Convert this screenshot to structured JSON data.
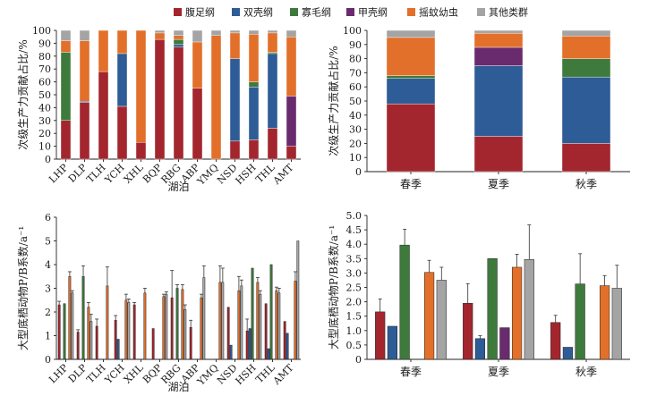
{
  "legend": [
    {
      "name": "腹足纲",
      "color": "#a3262e"
    },
    {
      "name": "双壳纲",
      "color": "#2e5c96"
    },
    {
      "name": "寡毛纲",
      "color": "#3f7a3d"
    },
    {
      "name": "甲壳纲",
      "color": "#6a2b6e"
    },
    {
      "name": "摇蚊幼虫",
      "color": "#e2702a"
    },
    {
      "name": "其他类群",
      "color": "#a4a4a4"
    }
  ],
  "chart_data": [
    {
      "type": "bar",
      "stacked": true,
      "panel": "top-left",
      "xlabel": "湖泊",
      "ylabel": "次级生产力贡献占比/%",
      "ylim": [
        0,
        100
      ],
      "yticks": [
        0,
        10,
        20,
        30,
        40,
        50,
        60,
        70,
        80,
        90,
        100
      ],
      "categories": [
        "LHP",
        "DLP",
        "TLH",
        "YCH",
        "XHL",
        "BQP",
        "RBG",
        "ABP",
        "YMQ",
        "NSD",
        "HSH",
        "THL",
        "AMT"
      ],
      "series": [
        {
          "name": "腹足纲",
          "values": [
            30,
            44,
            68,
            41,
            13,
            93,
            87,
            55,
            0,
            14,
            15,
            24,
            10
          ]
        },
        {
          "name": "双壳纲",
          "values": [
            0,
            1,
            0,
            41,
            0,
            0,
            2,
            0,
            0,
            64,
            41,
            58,
            0
          ]
        },
        {
          "name": "寡毛纲",
          "values": [
            53,
            0,
            0,
            0,
            0,
            0,
            4,
            0,
            0,
            0,
            4,
            1,
            0
          ]
        },
        {
          "name": "甲壳纲",
          "values": [
            0,
            0,
            0,
            0,
            0,
            0,
            0,
            0,
            0,
            0,
            0,
            0,
            39
          ]
        },
        {
          "name": "摇蚊幼虫",
          "values": [
            9,
            47,
            32,
            18,
            87,
            5,
            3,
            36,
            96,
            20,
            37,
            15,
            46
          ]
        },
        {
          "name": "其他类群",
          "values": [
            8,
            8,
            0,
            0,
            0,
            2,
            4,
            9,
            4,
            2,
            3,
            2,
            5
          ]
        }
      ]
    },
    {
      "type": "bar",
      "stacked": true,
      "panel": "top-right",
      "xlabel": "",
      "ylabel": "次级生产力贡献占比/%",
      "ylim": [
        0,
        100
      ],
      "yticks": [
        0,
        10,
        20,
        30,
        40,
        50,
        60,
        70,
        80,
        90,
        100
      ],
      "categories": [
        "春季",
        "夏季",
        "秋季"
      ],
      "series": [
        {
          "name": "腹足纲",
          "values": [
            48,
            25,
            20
          ]
        },
        {
          "name": "双壳纲",
          "values": [
            18,
            50,
            47
          ]
        },
        {
          "name": "寡毛纲",
          "values": [
            2,
            0,
            13
          ]
        },
        {
          "name": "甲壳纲",
          "values": [
            0,
            13,
            0
          ]
        },
        {
          "name": "摇蚊幼虫",
          "values": [
            27,
            10,
            16
          ]
        },
        {
          "name": "其他类群",
          "values": [
            5,
            2,
            4
          ]
        }
      ]
    },
    {
      "type": "bar",
      "grouped": true,
      "panel": "bottom-left",
      "xlabel": "湖泊",
      "ylabel": "大型底栖动物P/B系数/a⁻¹",
      "ylim": [
        0,
        6
      ],
      "yticks": [
        0,
        1,
        2,
        3,
        4,
        5,
        6
      ],
      "categories": [
        "LHP",
        "DLP",
        "TLH",
        "YCH",
        "XHL",
        "BQP",
        "RBG",
        "ABP",
        "YMQ",
        "NSD",
        "HSH",
        "THL",
        "AMT"
      ],
      "series": [
        {
          "name": "腹足纲",
          "values": [
            2.3,
            1.15,
            1.4,
            1.65,
            2.3,
            1.3,
            2.6,
            1.35,
            0,
            2.2,
            1.2,
            2.35,
            1.6
          ],
          "errors": [
            0.15,
            0.1,
            0.3,
            0.2,
            0.1,
            0,
            1.15,
            0.3,
            0,
            0,
            0.5,
            0,
            0
          ]
        },
        {
          "name": "双壳纲",
          "values": [
            0,
            0,
            0,
            0.85,
            0,
            0,
            0,
            0,
            0,
            0.6,
            1.3,
            0.45,
            1.1
          ]
        },
        {
          "name": "寡毛纲",
          "values": [
            2.35,
            3.5,
            0,
            0,
            0,
            0,
            3.0,
            0,
            0,
            0,
            3.85,
            4.0,
            0
          ],
          "errors": [
            0,
            0.45,
            0,
            0,
            0,
            0,
            0.15,
            0,
            0,
            0,
            0,
            0,
            0
          ]
        },
        {
          "name": "甲壳纲",
          "values": [
            0,
            0,
            0,
            0,
            0,
            0,
            0,
            0,
            0,
            0,
            0,
            0,
            0
          ]
        },
        {
          "name": "摇蚊幼虫",
          "values": [
            3.5,
            2.2,
            3.1,
            2.5,
            2.8,
            2.65,
            2.95,
            2.6,
            3.25,
            2.9,
            3.25,
            2.9,
            3.3
          ],
          "errors": [
            0.2,
            0.2,
            0.8,
            0.25,
            0.2,
            0.1,
            0.2,
            0.15,
            0.7,
            0.6,
            0.2,
            0.15,
            0.4
          ]
        },
        {
          "name": "其他类群",
          "values": [
            2.8,
            1.6,
            0,
            2.4,
            0,
            2.75,
            2.1,
            3.45,
            3.25,
            3.1,
            2.75,
            2.8,
            5.0
          ],
          "errors": [
            0.1,
            0.3,
            0,
            0.15,
            0,
            0.1,
            0.2,
            0.5,
            0.6,
            0.25,
            0.15,
            0.2,
            0
          ]
        }
      ]
    },
    {
      "type": "bar",
      "grouped": true,
      "panel": "bottom-right",
      "xlabel": "",
      "ylabel": "大型底栖动物P/B系数/a⁻¹",
      "ylim": [
        0,
        5.0
      ],
      "yticks": [
        "0",
        "0.5",
        "1.0",
        "1.5",
        "2.0",
        "2.5",
        "3.0",
        "3.5",
        "4.0",
        "4.5",
        "5.0"
      ],
      "categories": [
        "春季",
        "夏季",
        "秋季"
      ],
      "series": [
        {
          "name": "腹足纲",
          "values": [
            1.65,
            1.95,
            1.28
          ],
          "errors": [
            0.45,
            0.68,
            0.25
          ]
        },
        {
          "name": "双壳纲",
          "values": [
            1.15,
            0.72,
            0.42
          ],
          "errors": [
            0,
            0.1,
            0
          ]
        },
        {
          "name": "寡毛纲",
          "values": [
            3.97,
            3.5,
            2.62
          ],
          "errors": [
            0.55,
            0,
            1.05
          ]
        },
        {
          "name": "甲壳纲",
          "values": [
            0,
            1.1,
            0
          ],
          "errors": [
            0,
            0,
            0
          ]
        },
        {
          "name": "摇蚊幼虫",
          "values": [
            3.02,
            3.2,
            2.56
          ],
          "errors": [
            0.42,
            0.45,
            0.35
          ]
        },
        {
          "name": "其他类群",
          "values": [
            2.75,
            3.47,
            2.47
          ],
          "errors": [
            0.45,
            1.2,
            0.8
          ]
        }
      ]
    }
  ]
}
